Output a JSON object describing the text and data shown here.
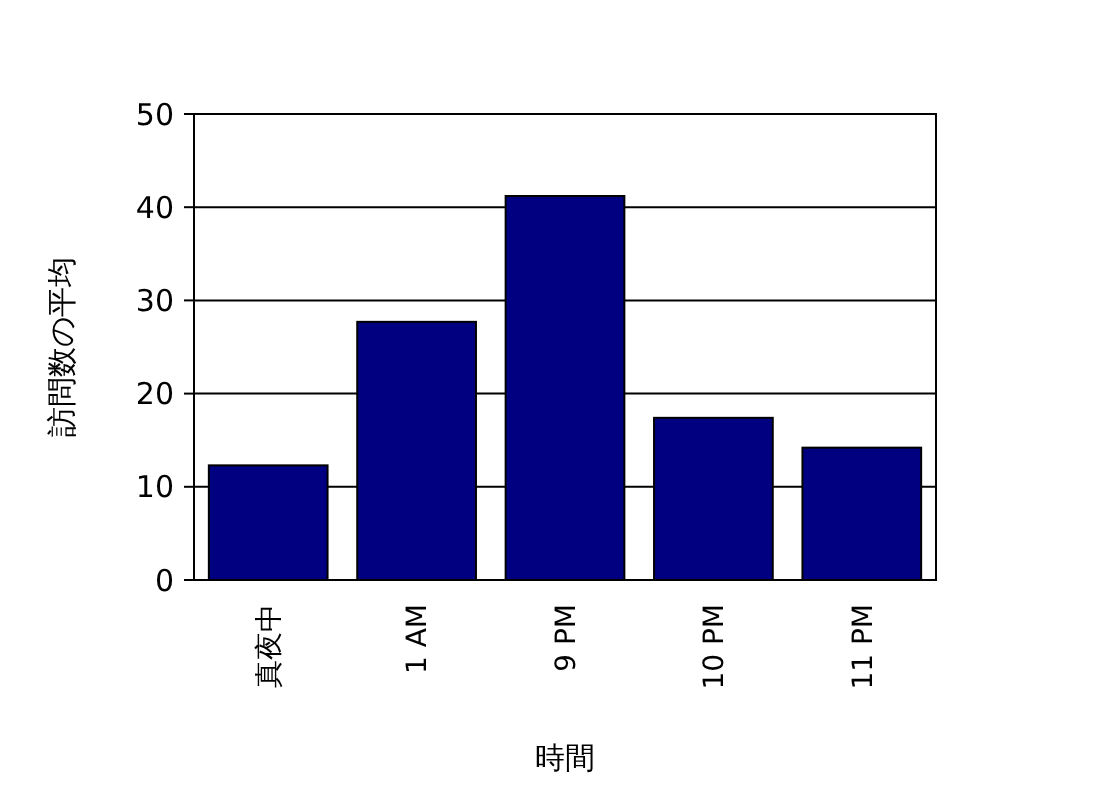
{
  "chart_data": {
    "type": "bar",
    "xlabel": "時間",
    "ylabel": "訪問数の平均",
    "categories": [
      "真夜中",
      "1 AM",
      "9 PM",
      "10 PM",
      "11 PM"
    ],
    "values": [
      12.3,
      27.7,
      41.2,
      17.4,
      14.2
    ],
    "color": "#000080",
    "ylim": [
      0,
      50
    ],
    "yticks": [
      0,
      10,
      20,
      30,
      40,
      50
    ],
    "grid": "y"
  }
}
